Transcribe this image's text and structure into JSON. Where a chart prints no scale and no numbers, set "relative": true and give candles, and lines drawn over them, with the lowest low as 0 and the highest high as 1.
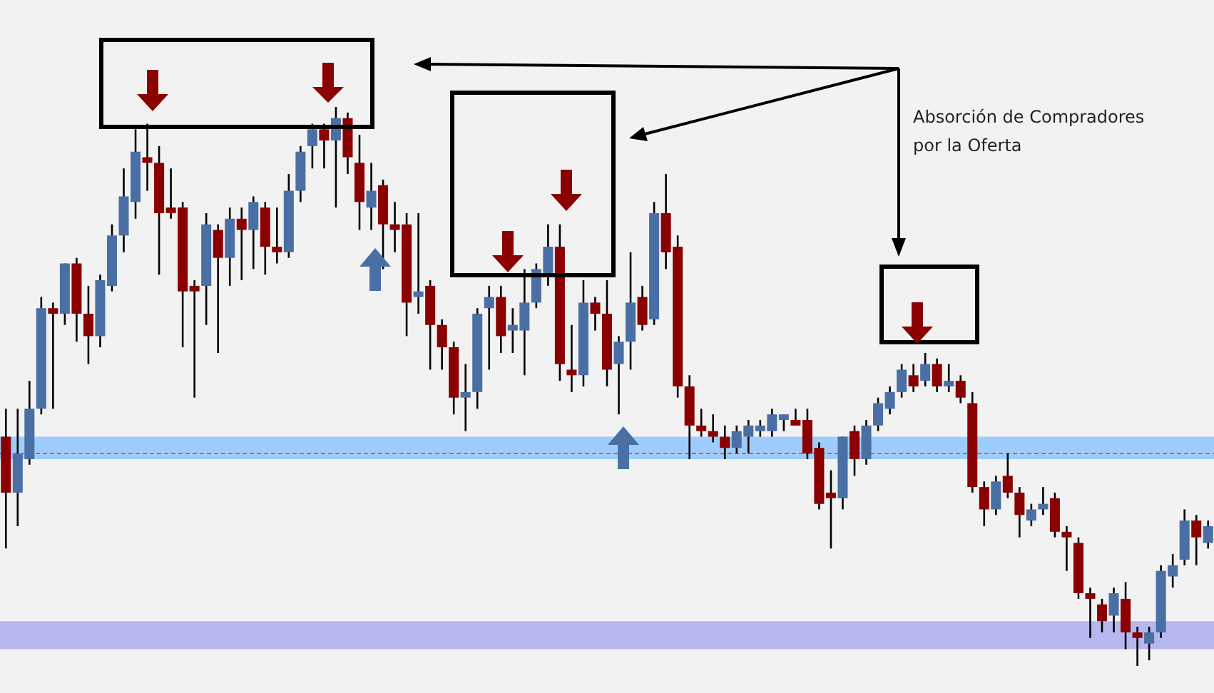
{
  "chart_data": {
    "type": "candlestick",
    "relative": true,
    "legend": false,
    "categories": [
      null,
      null,
      null,
      null,
      null,
      null,
      null,
      null,
      null,
      null,
      null,
      null,
      null,
      null,
      null,
      null,
      null,
      null,
      null,
      null,
      null,
      null,
      null,
      null,
      null,
      null,
      null,
      null,
      null,
      null,
      null,
      null,
      null,
      null,
      null,
      null,
      null,
      null,
      null,
      null,
      null,
      null,
      null,
      null,
      null,
      null,
      null,
      null,
      null,
      null,
      null,
      null,
      null,
      null,
      null,
      null,
      null,
      null,
      null,
      null,
      null,
      null,
      null,
      null,
      null,
      null,
      null,
      null,
      null,
      null,
      null,
      null,
      null,
      null,
      null,
      null,
      null,
      null,
      null,
      null,
      null,
      null,
      null,
      null,
      null,
      null,
      null,
      null,
      null,
      null,
      null,
      null,
      null,
      null,
      null,
      null,
      null,
      null,
      null,
      null,
      null,
      null,
      null
    ],
    "ohlc": [
      [
        0.41,
        0.46,
        0.21,
        0.31
      ],
      [
        0.31,
        0.46,
        0.25,
        0.38
      ],
      [
        0.37,
        0.51,
        0.36,
        0.46
      ],
      [
        0.46,
        0.66,
        0.45,
        0.64
      ],
      [
        0.64,
        0.65,
        0.46,
        0.63
      ],
      [
        0.63,
        0.72,
        0.61,
        0.72
      ],
      [
        0.72,
        0.73,
        0.58,
        0.63
      ],
      [
        0.63,
        0.68,
        0.54,
        0.59
      ],
      [
        0.59,
        0.7,
        0.57,
        0.69
      ],
      [
        0.68,
        0.79,
        0.67,
        0.77
      ],
      [
        0.77,
        0.89,
        0.74,
        0.84
      ],
      [
        0.83,
        0.96,
        0.8,
        0.92
      ],
      [
        0.91,
        0.97,
        0.85,
        0.9
      ],
      [
        0.9,
        0.93,
        0.7,
        0.81
      ],
      [
        0.82,
        0.89,
        0.8,
        0.81
      ],
      [
        0.82,
        0.83,
        0.57,
        0.67
      ],
      [
        0.68,
        0.69,
        0.48,
        0.67
      ],
      [
        0.68,
        0.81,
        0.61,
        0.79
      ],
      [
        0.78,
        0.79,
        0.56,
        0.73
      ],
      [
        0.73,
        0.82,
        0.68,
        0.8
      ],
      [
        0.8,
        0.82,
        0.69,
        0.78
      ],
      [
        0.78,
        0.84,
        0.71,
        0.83
      ],
      [
        0.82,
        0.83,
        0.7,
        0.75
      ],
      [
        0.75,
        0.82,
        0.72,
        0.74
      ],
      [
        0.74,
        0.88,
        0.73,
        0.85
      ],
      [
        0.85,
        0.93,
        0.83,
        0.92
      ],
      [
        0.93,
        0.97,
        0.89,
        0.96
      ],
      [
        0.96,
        0.97,
        0.89,
        0.94
      ],
      [
        0.94,
        1,
        0.82,
        0.98
      ],
      [
        0.98,
        0.99,
        0.88,
        0.91
      ],
      [
        0.9,
        0.95,
        0.78,
        0.83
      ],
      [
        0.82,
        0.9,
        0.78,
        0.85
      ],
      [
        0.86,
        0.87,
        0.71,
        0.79
      ],
      [
        0.79,
        0.83,
        0.74,
        0.78
      ],
      [
        0.79,
        0.81,
        0.59,
        0.65
      ],
      [
        0.66,
        0.81,
        0.63,
        0.67
      ],
      [
        0.68,
        0.69,
        0.53,
        0.61
      ],
      [
        0.61,
        0.62,
        0.53,
        0.57
      ],
      [
        0.57,
        0.58,
        0.45,
        0.48
      ],
      [
        0.48,
        0.54,
        0.42,
        0.49
      ],
      [
        0.49,
        0.64,
        0.46,
        0.63
      ],
      [
        0.64,
        0.68,
        0.53,
        0.66
      ],
      [
        0.66,
        0.68,
        0.56,
        0.59
      ],
      [
        0.6,
        0.64,
        0.56,
        0.61
      ],
      [
        0.6,
        0.71,
        0.52,
        0.65
      ],
      [
        0.65,
        0.72,
        0.64,
        0.71
      ],
      [
        0.7,
        0.79,
        0.68,
        0.75
      ],
      [
        0.75,
        0.79,
        0.51,
        0.54
      ],
      [
        0.53,
        0.61,
        0.49,
        0.52
      ],
      [
        0.52,
        0.69,
        0.5,
        0.65
      ],
      [
        0.65,
        0.66,
        0.6,
        0.63
      ],
      [
        0.63,
        0.69,
        0.5,
        0.53
      ],
      [
        0.54,
        0.59,
        0.45,
        0.58
      ],
      [
        0.58,
        0.74,
        0.53,
        0.65
      ],
      [
        0.66,
        0.68,
        0.6,
        0.61
      ],
      [
        0.62,
        0.83,
        0.61,
        0.81
      ],
      [
        0.81,
        0.88,
        0.71,
        0.74
      ],
      [
        0.75,
        0.77,
        0.48,
        0.5
      ],
      [
        0.5,
        0.52,
        0.37,
        0.43
      ],
      [
        0.43,
        0.46,
        0.41,
        0.42
      ],
      [
        0.42,
        0.45,
        0.4,
        0.41
      ],
      [
        0.41,
        0.43,
        0.37,
        0.39
      ],
      [
        0.39,
        0.43,
        0.38,
        0.42
      ],
      [
        0.41,
        0.44,
        0.38,
        0.43
      ],
      [
        0.42,
        0.44,
        0.41,
        0.43
      ],
      [
        0.42,
        0.46,
        0.41,
        0.45
      ],
      [
        0.44,
        0.45,
        0.42,
        0.45
      ],
      [
        0.44,
        0.46,
        0.43,
        0.43
      ],
      [
        0.44,
        0.46,
        0.37,
        0.38
      ],
      [
        0.39,
        0.4,
        0.28,
        0.29
      ],
      [
        0.31,
        0.35,
        0.21,
        0.3
      ],
      [
        0.3,
        0.41,
        0.28,
        0.41
      ],
      [
        0.42,
        0.43,
        0.34,
        0.37
      ],
      [
        0.37,
        0.44,
        0.36,
        0.43
      ],
      [
        0.43,
        0.48,
        0.42,
        0.47
      ],
      [
        0.46,
        0.5,
        0.45,
        0.49
      ],
      [
        0.49,
        0.54,
        0.48,
        0.53
      ],
      [
        0.52,
        0.54,
        0.49,
        0.5
      ],
      [
        0.51,
        0.56,
        0.5,
        0.54
      ],
      [
        0.54,
        0.55,
        0.49,
        0.5
      ],
      [
        0.5,
        0.54,
        0.49,
        0.51
      ],
      [
        0.51,
        0.52,
        0.47,
        0.48
      ],
      [
        0.47,
        0.49,
        0.31,
        0.32
      ],
      [
        0.32,
        0.33,
        0.25,
        0.28
      ],
      [
        0.28,
        0.34,
        0.27,
        0.33
      ],
      [
        0.34,
        0.38,
        0.3,
        0.31
      ],
      [
        0.31,
        0.32,
        0.23,
        0.27
      ],
      [
        0.26,
        0.29,
        0.25,
        0.28
      ],
      [
        0.28,
        0.32,
        0.27,
        0.29
      ],
      [
        0.3,
        0.31,
        0.23,
        0.24
      ],
      [
        0.24,
        0.25,
        0.17,
        0.23
      ],
      [
        0.22,
        0.23,
        0.12,
        0.13
      ],
      [
        0.13,
        0.14,
        0.05,
        0.12
      ],
      [
        0.11,
        0.12,
        0.06,
        0.08
      ],
      [
        0.09,
        0.14,
        0.06,
        0.13
      ],
      [
        0.12,
        0.15,
        0.03,
        0.06
      ],
      [
        0.06,
        0.07,
        0,
        0.05
      ],
      [
        0.04,
        0.07,
        0.01,
        0.06
      ],
      [
        0.06,
        0.18,
        0.05,
        0.17
      ],
      [
        0.16,
        0.2,
        0.14,
        0.18
      ],
      [
        0.19,
        0.28,
        0.18,
        0.26
      ],
      [
        0.26,
        0.27,
        0.18,
        0.23
      ],
      [
        0.22,
        0.26,
        0.21,
        0.25
      ]
    ],
    "colors": [
      "#8b0000",
      "#4a6fa5",
      "#4a6fa5",
      "#4a6fa5",
      "#8b0000",
      "#4a6fa5",
      "#8b0000",
      "#8b0000",
      "#4a6fa5",
      "#4a6fa5",
      "#4a6fa5",
      "#4a6fa5",
      "#8b0000",
      "#8b0000",
      "#8b0000",
      "#8b0000",
      "#8b0000",
      "#4a6fa5",
      "#8b0000",
      "#4a6fa5",
      "#8b0000",
      "#4a6fa5",
      "#8b0000",
      "#8b0000",
      "#4a6fa5",
      "#4a6fa5",
      "#4a6fa5",
      "#8b0000",
      "#4a6fa5",
      "#8b0000",
      "#8b0000",
      "#4a6fa5",
      "#8b0000",
      "#8b0000",
      "#8b0000",
      "#4a6fa5",
      "#8b0000",
      "#8b0000",
      "#8b0000",
      "#4a6fa5",
      "#4a6fa5",
      "#4a6fa5",
      "#8b0000",
      "#4a6fa5",
      "#4a6fa5",
      "#4a6fa5",
      "#4a6fa5",
      "#8b0000",
      "#8b0000",
      "#4a6fa5",
      "#8b0000",
      "#8b0000",
      "#4a6fa5",
      "#4a6fa5",
      "#8b0000",
      "#4a6fa5",
      "#8b0000",
      "#8b0000",
      "#8b0000",
      "#8b0000",
      "#8b0000",
      "#8b0000",
      "#4a6fa5",
      "#4a6fa5",
      "#4a6fa5",
      "#4a6fa5",
      "#4a6fa5",
      "#8b0000",
      "#8b0000",
      "#8b0000",
      "#8b0000",
      "#4a6fa5",
      "#8b0000",
      "#4a6fa5",
      "#4a6fa5",
      "#4a6fa5",
      "#4a6fa5",
      "#8b0000",
      "#4a6fa5",
      "#8b0000",
      "#4a6fa5",
      "#8b0000",
      "#8b0000",
      "#8b0000",
      "#4a6fa5",
      "#8b0000",
      "#8b0000",
      "#4a6fa5",
      "#4a6fa5",
      "#8b0000",
      "#8b0000",
      "#8b0000",
      "#8b0000",
      "#8b0000",
      "#4a6fa5",
      "#8b0000",
      "#8b0000",
      "#4a6fa5",
      "#4a6fa5",
      "#4a6fa5",
      "#4a6fa5",
      "#8b0000",
      "#4a6fa5"
    ],
    "bands": [
      {
        "axis": "y",
        "from": 0.37,
        "to": 0.41,
        "color": "#9fcdfb"
      },
      {
        "axis": "y",
        "from": 0.03,
        "to": 0.08,
        "color": "#b7b7ef"
      }
    ],
    "ref_lines": [
      {
        "axis": "y",
        "value": 0.38,
        "color": "#ff4d4d",
        "line_style": "dashed"
      }
    ],
    "annotations": [
      "Absorción de Compradores por la Oferta"
    ]
  }
}
